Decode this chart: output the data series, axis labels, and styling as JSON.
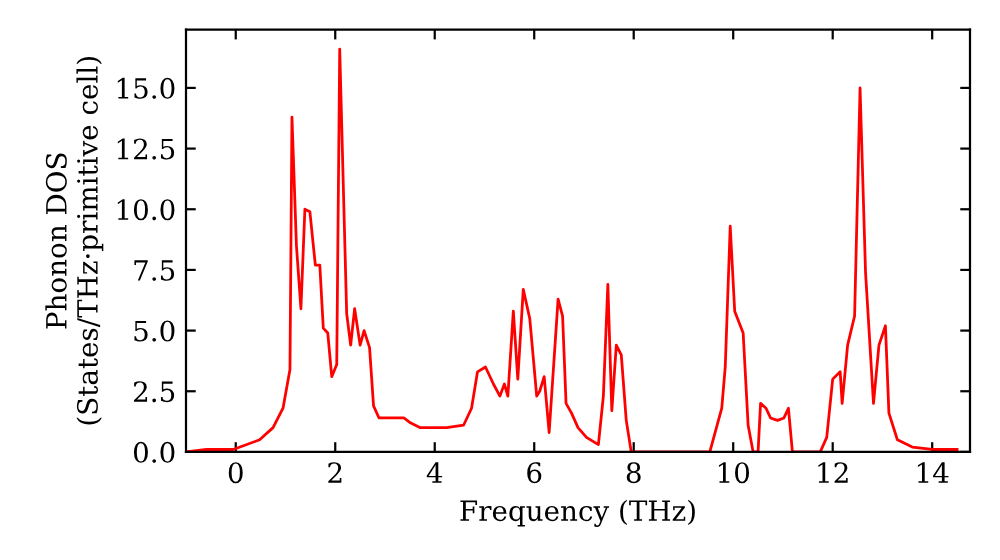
{
  "chart_data": {
    "type": "line",
    "xlabel": "Frequency (THz)",
    "ylabel": "Phonon DOS\n(States/THz·primitive cell)",
    "x": [
      -1.0,
      -0.59,
      -0.05,
      0.48,
      0.75,
      0.95,
      1.09,
      1.13,
      1.22,
      1.31,
      1.39,
      1.49,
      1.6,
      1.69,
      1.76,
      1.85,
      1.93,
      2.03,
      2.09,
      2.23,
      2.31,
      2.39,
      2.5,
      2.58,
      2.69,
      2.77,
      2.88,
      3.38,
      3.51,
      3.71,
      4.24,
      4.58,
      4.74,
      4.86,
      5.02,
      5.18,
      5.31,
      5.4,
      5.47,
      5.58,
      5.67,
      5.78,
      5.91,
      6.05,
      6.11,
      6.2,
      6.3,
      6.48,
      6.57,
      6.64,
      6.75,
      6.88,
      7.05,
      7.29,
      7.39,
      7.48,
      7.56,
      7.65,
      7.75,
      7.85,
      7.95,
      9.53,
      9.77,
      9.84,
      9.94,
      10.03,
      10.2,
      10.3,
      10.4,
      10.5,
      10.55,
      10.66,
      10.75,
      10.89,
      11.02,
      11.11,
      11.19,
      11.75,
      11.88,
      12.0,
      12.15,
      12.19,
      12.3,
      12.44,
      12.55,
      12.66,
      12.82,
      12.93,
      13.06,
      13.13,
      13.3,
      13.6,
      14.0,
      14.5
    ],
    "series": [
      {
        "color": "#ff0000",
        "values": [
          0.0,
          0.1,
          0.1,
          0.5,
          1.0,
          1.8,
          3.4,
          13.8,
          8.5,
          5.9,
          10.0,
          9.9,
          7.7,
          7.7,
          5.1,
          4.9,
          3.1,
          3.6,
          16.6,
          5.7,
          4.4,
          5.9,
          4.4,
          5.0,
          4.3,
          1.9,
          1.4,
          1.4,
          1.2,
          1.0,
          1.0,
          1.1,
          1.8,
          3.3,
          3.5,
          2.8,
          2.3,
          2.8,
          2.3,
          5.8,
          3.0,
          6.7,
          5.5,
          2.3,
          2.5,
          3.1,
          0.8,
          6.3,
          5.6,
          2.0,
          1.6,
          1.0,
          0.6,
          0.3,
          2.3,
          6.9,
          1.7,
          4.4,
          4.0,
          1.3,
          0.0,
          0.0,
          1.8,
          3.5,
          9.3,
          5.8,
          4.9,
          1.1,
          0.0,
          0.0,
          2.0,
          1.8,
          1.4,
          1.3,
          1.4,
          1.8,
          0.0,
          0.0,
          0.6,
          3.0,
          3.3,
          2.0,
          4.4,
          5.6,
          15.0,
          7.4,
          2.0,
          4.4,
          5.2,
          1.6,
          0.5,
          0.2,
          0.1,
          0.1
        ]
      }
    ],
    "xlim": [
      -1.0,
      14.76
    ],
    "ylim": [
      0,
      17.4
    ],
    "xticks": [
      0,
      2,
      4,
      6,
      8,
      10,
      12,
      14
    ],
    "yticks": [
      {
        "value": 0,
        "label": "0.0"
      },
      {
        "value": 2.5,
        "label": "2.5"
      },
      {
        "value": 5,
        "label": "5.0"
      },
      {
        "value": 7.5,
        "label": "7.5"
      },
      {
        "value": 10,
        "label": "10.0"
      },
      {
        "value": 12.5,
        "label": "12.5"
      },
      {
        "value": 15,
        "label": "15.0"
      }
    ],
    "grid": false,
    "legend": false
  }
}
